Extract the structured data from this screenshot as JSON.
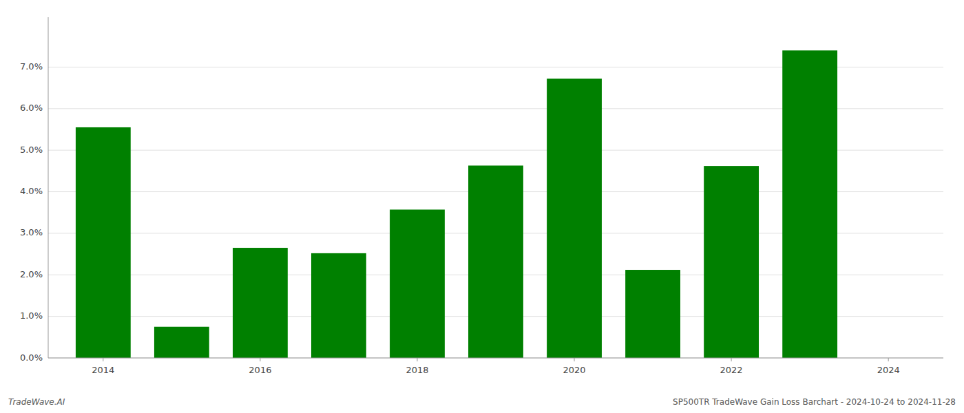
{
  "chart_data": {
    "type": "bar",
    "x": [
      2014,
      2015,
      2016,
      2017,
      2018,
      2019,
      2020,
      2021,
      2022,
      2023
    ],
    "values": [
      0.0555,
      0.0075,
      0.0265,
      0.0252,
      0.0357,
      0.0463,
      0.0672,
      0.0212,
      0.0462,
      0.074
    ],
    "color": "#008000",
    "xlim": [
      2013.3,
      2024.7
    ],
    "xticks": [
      2014,
      2016,
      2018,
      2020,
      2022,
      2024
    ],
    "ylim": [
      0,
      0.082
    ],
    "yticks": [
      {
        "value": 0,
        "label": "0.0%"
      },
      {
        "value": 0.01,
        "label": "1.0%"
      },
      {
        "value": 0.02,
        "label": "2.0%"
      },
      {
        "value": 0.03,
        "label": "3.0%"
      },
      {
        "value": 0.04,
        "label": "4.0%"
      },
      {
        "value": 0.05,
        "label": "5.0%"
      },
      {
        "value": 0.06,
        "label": "6.0%"
      },
      {
        "value": 0.07,
        "label": "7.0%"
      }
    ],
    "grid": true,
    "annotations": [
      "TradeWave.AI",
      "SP500TR TradeWave Gain Loss Barchart - 2024-10-24 to 2024-11-28"
    ]
  }
}
